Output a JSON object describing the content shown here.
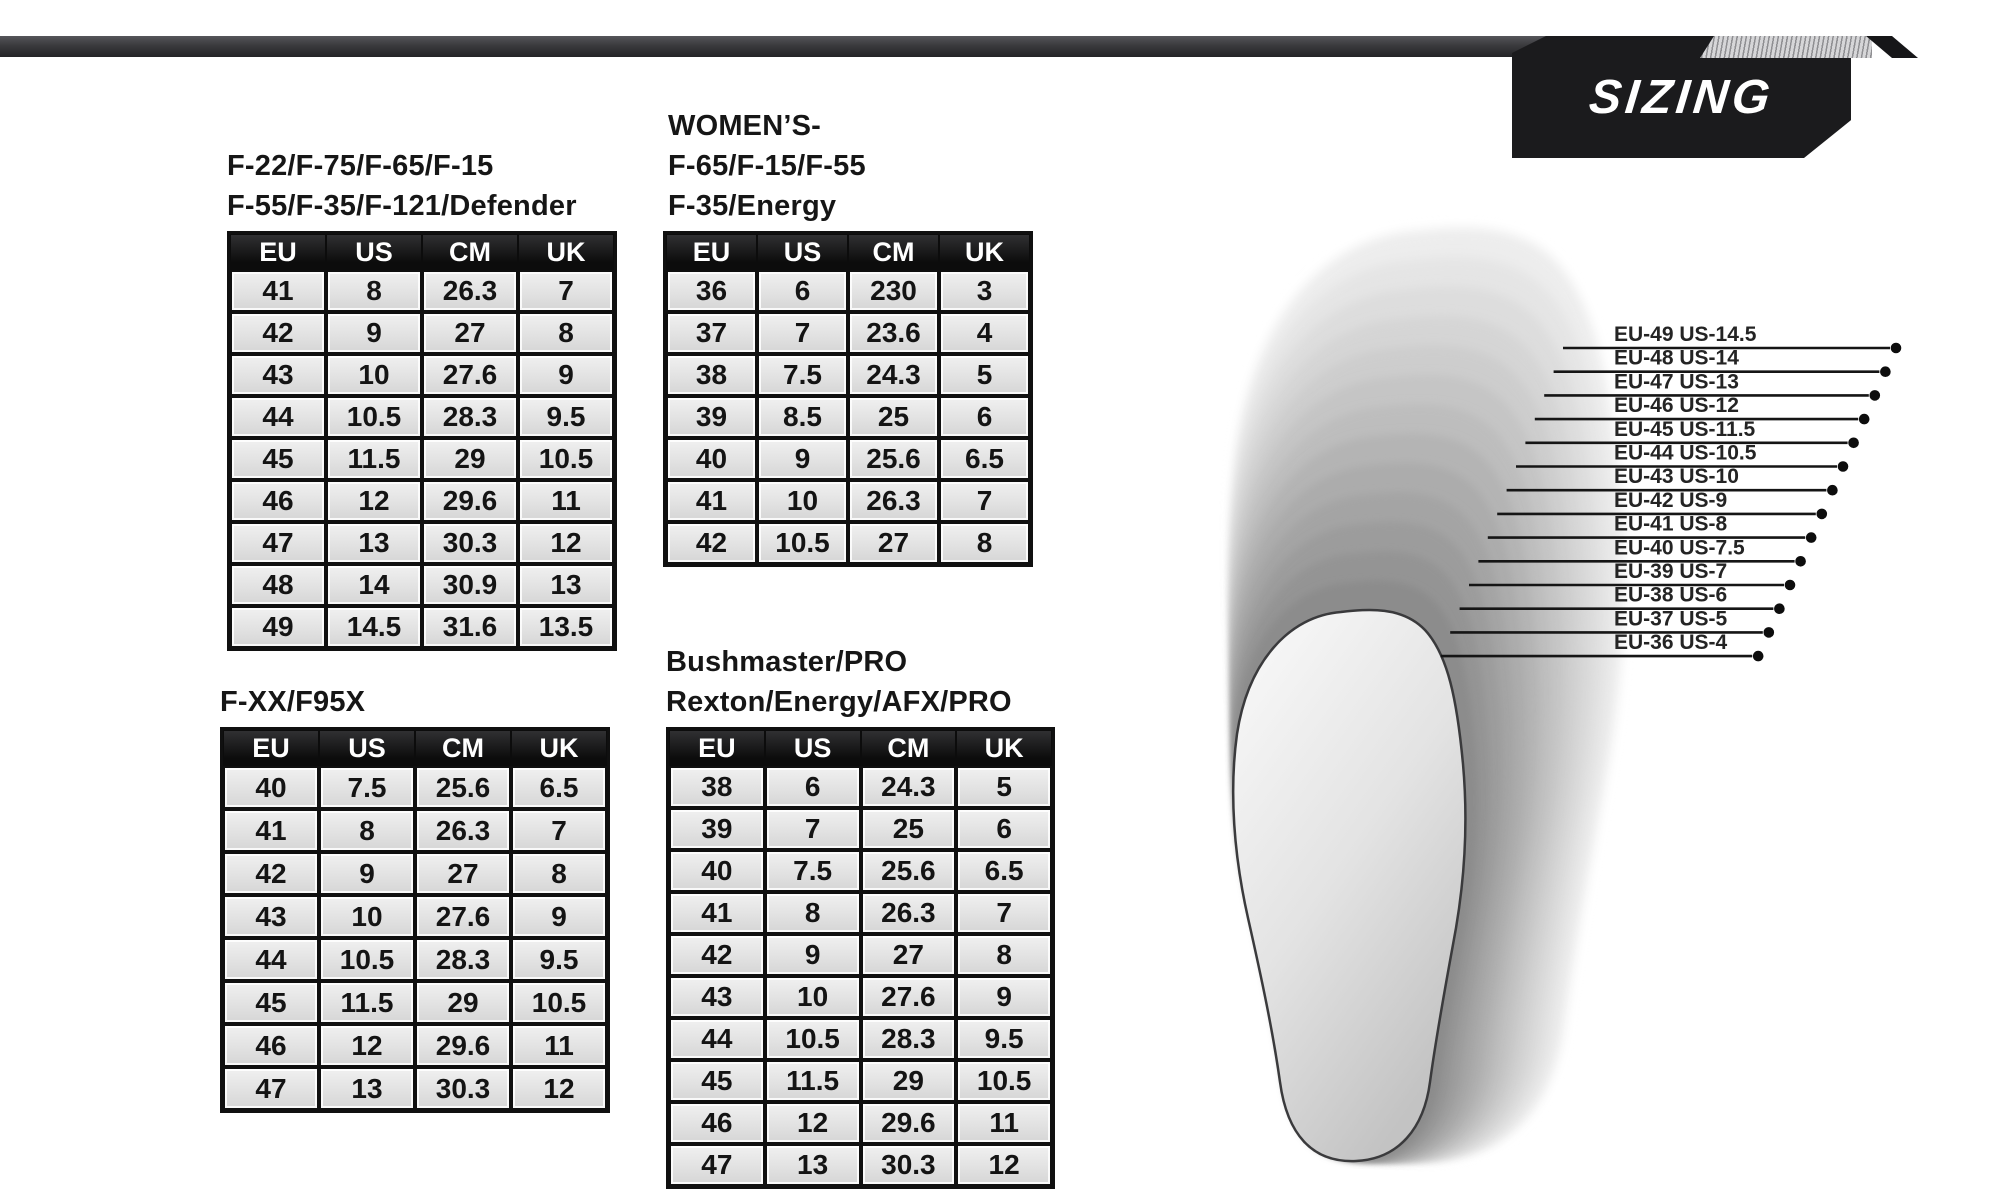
{
  "logo": {
    "text": "SIZING"
  },
  "colors": {
    "banner_bar": "#3a3a3d",
    "logo_block": "#1b1b1d",
    "logo_text": "#ffffff",
    "table_header_bg": "#0c0c0c",
    "table_header_text": "#ffffff",
    "table_cell_bg": "#e4e4e4",
    "table_grid": "#101010",
    "body_text": "#141414"
  },
  "tables": [
    {
      "title_lines": [
        "F-22/F-75/F-65/F-15",
        "F-55/F-35/F-121/Defender"
      ],
      "headers": [
        "EU",
        "US",
        "CM",
        "UK"
      ],
      "rows": [
        [
          "41",
          "8",
          "26.3",
          "7"
        ],
        [
          "42",
          "9",
          "27",
          "8"
        ],
        [
          "43",
          "10",
          "27.6",
          "9"
        ],
        [
          "44",
          "10.5",
          "28.3",
          "9.5"
        ],
        [
          "45",
          "11.5",
          "29",
          "10.5"
        ],
        [
          "46",
          "12",
          "29.6",
          "11"
        ],
        [
          "47",
          "13",
          "30.3",
          "12"
        ],
        [
          "48",
          "14",
          "30.9",
          "13"
        ],
        [
          "49",
          "14.5",
          "31.6",
          "13.5"
        ]
      ]
    },
    {
      "title_lines": [
        "WOMEN’S-",
        "F-65/F-15/F-55",
        "F-35/Energy"
      ],
      "headers": [
        "EU",
        "US",
        "CM",
        "UK"
      ],
      "rows": [
        [
          "36",
          "6",
          "230",
          "3"
        ],
        [
          "37",
          "7",
          "23.6",
          "4"
        ],
        [
          "38",
          "7.5",
          "24.3",
          "5"
        ],
        [
          "39",
          "8.5",
          "25",
          "6"
        ],
        [
          "40",
          "9",
          "25.6",
          "6.5"
        ],
        [
          "41",
          "10",
          "26.3",
          "7"
        ],
        [
          "42",
          "10.5",
          "27",
          "8"
        ]
      ]
    },
    {
      "title_lines": [
        "F-XX/F95X"
      ],
      "headers": [
        "EU",
        "US",
        "CM",
        "UK"
      ],
      "rows": [
        [
          "40",
          "7.5",
          "25.6",
          "6.5"
        ],
        [
          "41",
          "8",
          "26.3",
          "7"
        ],
        [
          "42",
          "9",
          "27",
          "8"
        ],
        [
          "43",
          "10",
          "27.6",
          "9"
        ],
        [
          "44",
          "10.5",
          "28.3",
          "9.5"
        ],
        [
          "45",
          "11.5",
          "29",
          "10.5"
        ],
        [
          "46",
          "12",
          "29.6",
          "11"
        ],
        [
          "47",
          "13",
          "30.3",
          "12"
        ]
      ]
    },
    {
      "title_lines": [
        "Bushmaster/PRO",
        "Rexton/Energy/AFX/PRO"
      ],
      "headers": [
        "EU",
        "US",
        "CM",
        "UK"
      ],
      "rows": [
        [
          "38",
          "6",
          "24.3",
          "5"
        ],
        [
          "39",
          "7",
          "25",
          "6"
        ],
        [
          "40",
          "7.5",
          "25.6",
          "6.5"
        ],
        [
          "41",
          "8",
          "26.3",
          "7"
        ],
        [
          "42",
          "9",
          "27",
          "8"
        ],
        [
          "43",
          "10",
          "27.6",
          "9"
        ],
        [
          "44",
          "10.5",
          "28.3",
          "9.5"
        ],
        [
          "45",
          "11.5",
          "29",
          "10.5"
        ],
        [
          "46",
          "12",
          "29.6",
          "11"
        ],
        [
          "47",
          "13",
          "30.3",
          "12"
        ]
      ]
    }
  ],
  "insole_diagram": {
    "labels": [
      "EU-49 US-14.5",
      "EU-48 US-14",
      "EU-47 US-13",
      "EU-46 US-12",
      "EU-45 US-11.5",
      "EU-44 US-10.5",
      "EU-43 US-10",
      "EU-42 US-9",
      "EU-41 US-8",
      "EU-40 US-7.5",
      "EU-39 US-7",
      "EU-38 US-6",
      "EU-37 US-5",
      "EU-36 US-4"
    ]
  }
}
